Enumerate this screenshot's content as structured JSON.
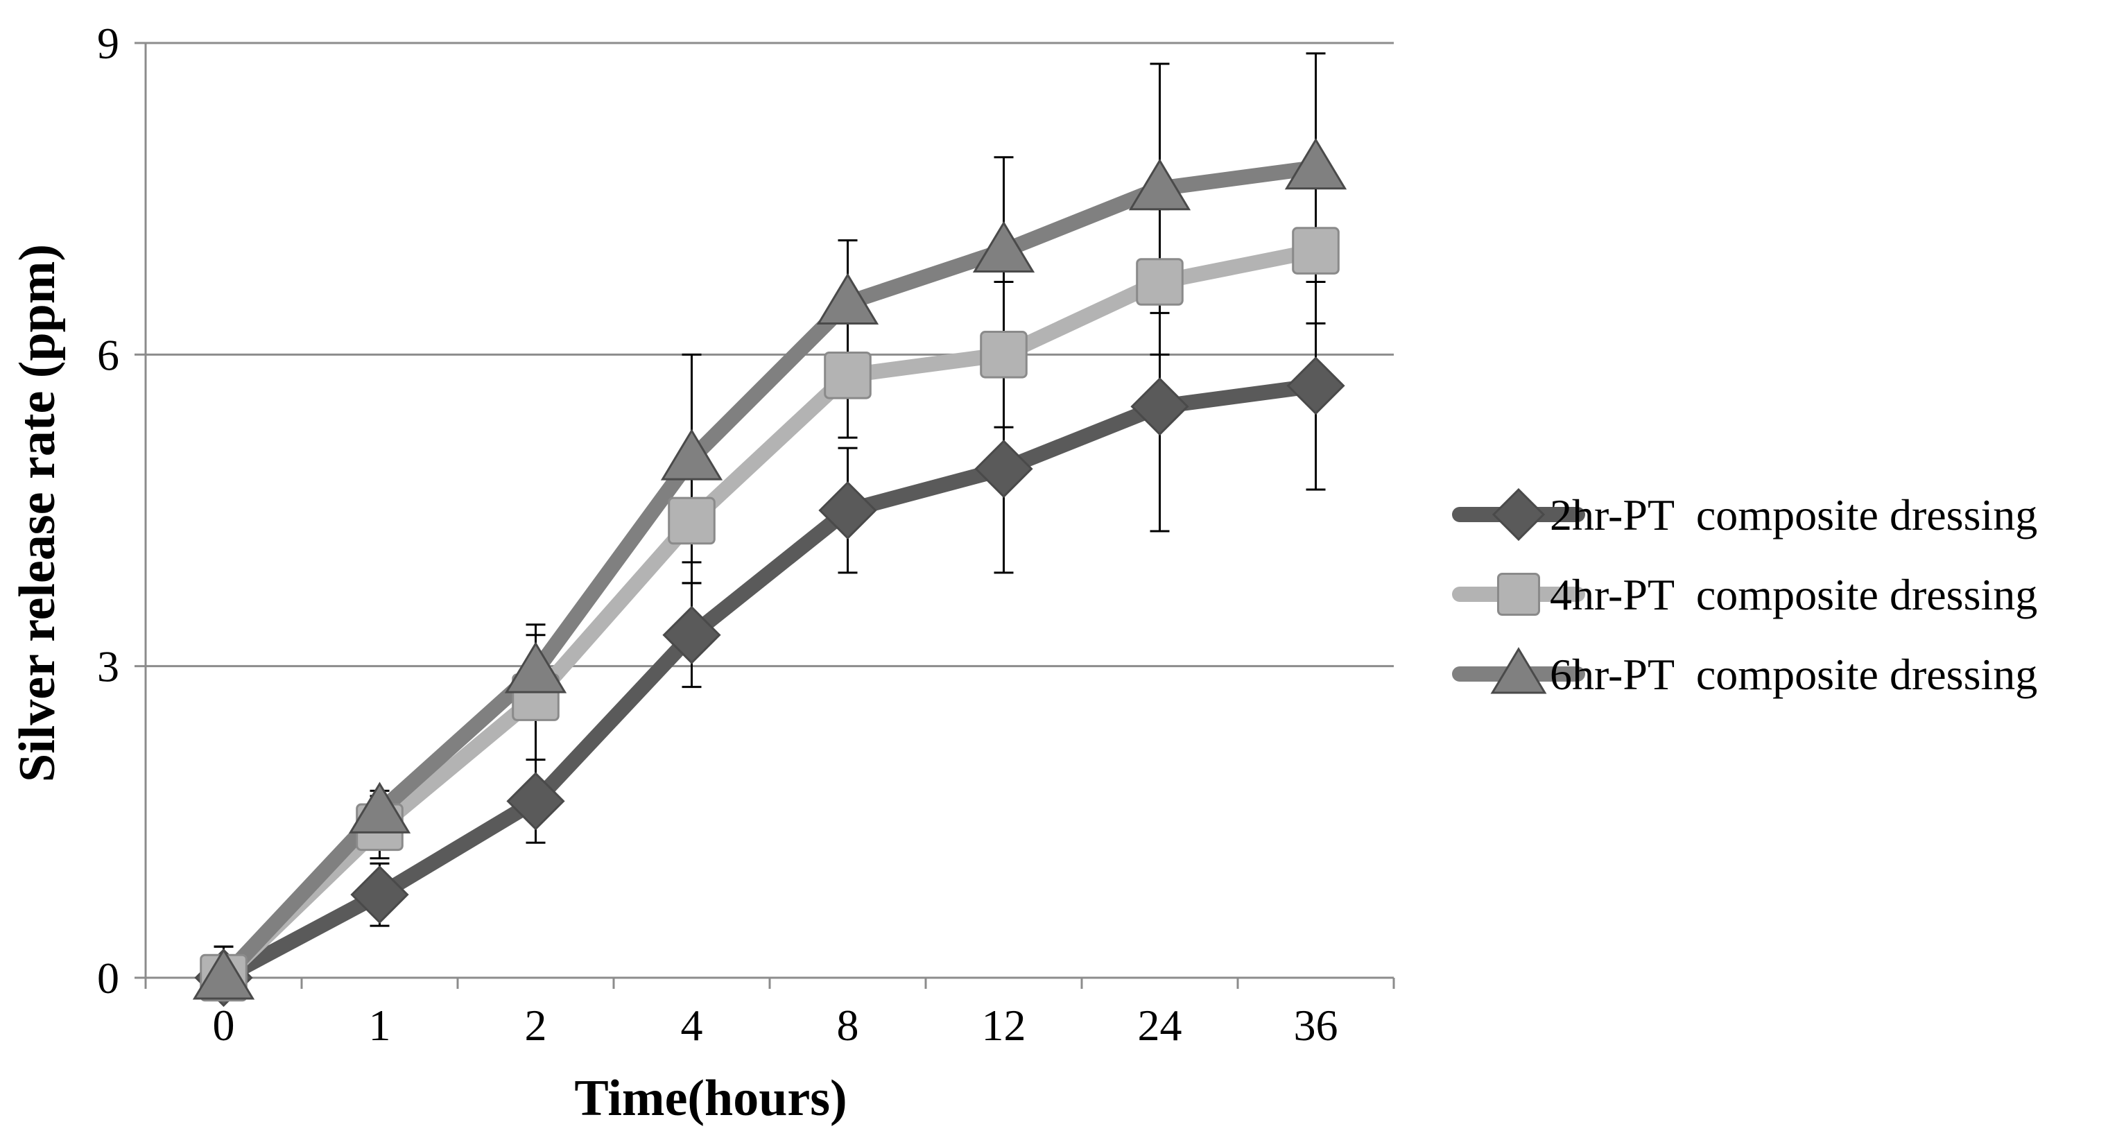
{
  "chart_data": {
    "type": "line",
    "title": "",
    "xlabel": "Time(hours)",
    "ylabel": "Silver release rate  (ppm)",
    "categories": [
      "0",
      "1",
      "2",
      "4",
      "8",
      "12",
      "24",
      "36"
    ],
    "ylim": [
      0,
      9
    ],
    "yticks": [
      0,
      3,
      6,
      9
    ],
    "grid": true,
    "legend_position": "right",
    "series": [
      {
        "name": "2hr-PT  composite dressing",
        "marker": "diamond",
        "color": "#5a5a5a",
        "values": [
          0,
          0.8,
          1.7,
          3.3,
          4.5,
          4.9,
          5.5,
          5.7
        ],
        "errors": [
          0.3,
          0.3,
          0.4,
          0.5,
          0.6,
          1.0,
          1.2,
          1.0
        ]
      },
      {
        "name": "4hr-PT  composite dressing",
        "marker": "square",
        "color": "#b3b3b3",
        "values": [
          0,
          1.45,
          2.7,
          4.4,
          5.8,
          6.0,
          6.7,
          7.0
        ],
        "errors": [
          0.3,
          0.3,
          0.6,
          0.6,
          0.6,
          0.7,
          0.7,
          0.7
        ]
      },
      {
        "name": "6hr-PT  composite dressing",
        "marker": "triangle",
        "color": "#808080",
        "values": [
          0,
          1.6,
          2.95,
          5.0,
          6.5,
          7.0,
          7.6,
          7.8
        ],
        "errors": [
          0.3,
          0.2,
          0.45,
          1.0,
          0.6,
          0.9,
          1.2,
          1.1
        ]
      }
    ]
  }
}
